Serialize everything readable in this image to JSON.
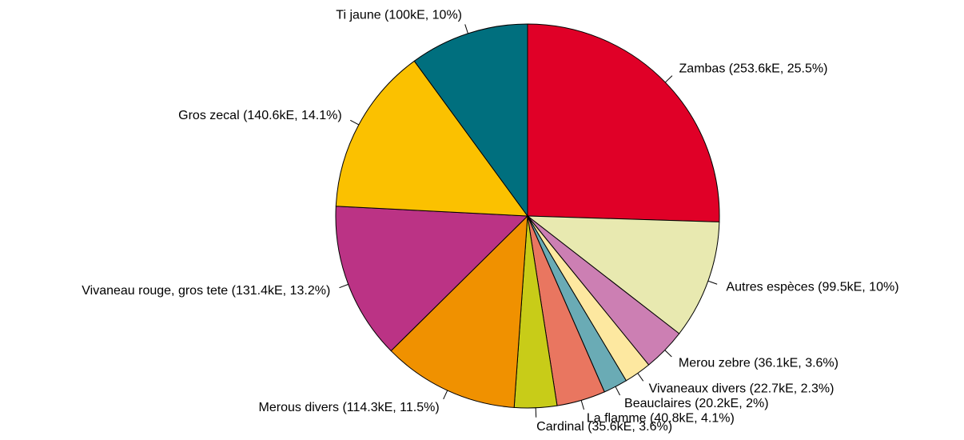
{
  "chart_data": {
    "type": "pie",
    "labels": [
      "Zambas (253.6kE, 25.5%)",
      "Autres espèces (99.5kE, 10%)",
      "Merou zebre (36.1kE, 3.6%)",
      "Vivaneaux divers (22.7kE, 2.3%)",
      "Beauclaires (20.2kE, 2%)",
      "La flamme (40.8kE, 4.1%)",
      "Cardinal (35.6kE, 3.6%)",
      "Merous divers (114.3kE, 11.5%)",
      "Vivaneau rouge, gros tete (131.4kE, 13.2%)",
      "Gros zecal (140.6kE, 14.1%)",
      "Ti jaune (100kE, 10%)"
    ],
    "values": [
      253.6,
      99.5,
      36.1,
      22.7,
      20.2,
      40.8,
      35.6,
      114.3,
      131.4,
      140.6,
      100
    ],
    "colors": [
      "#e00027",
      "#e8e9b0",
      "#cc7fb3",
      "#fde8a0",
      "#6aabb5",
      "#e97660",
      "#c8cc18",
      "#f09100",
      "#bb3385",
      "#fbc100",
      "#006f7e"
    ],
    "start_angle": 90,
    "clockwise": true
  }
}
